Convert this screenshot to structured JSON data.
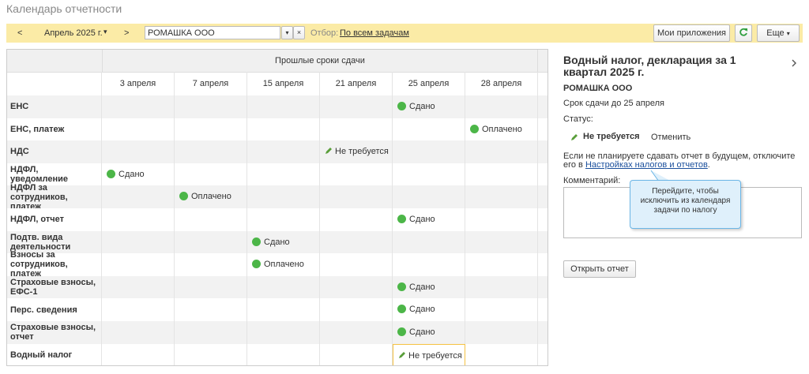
{
  "header": {
    "title": "Календарь отчетности"
  },
  "toolbar": {
    "prev": "<",
    "period": "Апрель 2025 г.",
    "next": ">",
    "company": "РОМАШКА ООО",
    "filter_label": "Отбор:",
    "filter_value": "По всем задачам",
    "apps": "Мои приложения",
    "more": "Еще"
  },
  "table": {
    "group_header": "Прошлые сроки сдачи",
    "dates": [
      "3 апреля",
      "7 апреля",
      "15 апреля",
      "21 апреля",
      "25 апреля",
      "28 апреля"
    ],
    "rows": [
      {
        "label": "ЕНС",
        "cells": [
          null,
          null,
          null,
          null,
          {
            "text": "Сдано",
            "icon": "dot"
          },
          null
        ]
      },
      {
        "label": "ЕНС, платеж",
        "cells": [
          null,
          null,
          null,
          null,
          null,
          {
            "text": "Оплачено",
            "icon": "dot"
          }
        ]
      },
      {
        "label": "НДС",
        "cells": [
          null,
          null,
          null,
          {
            "text": "Не требуется",
            "icon": "pencil"
          },
          null,
          null
        ]
      },
      {
        "label": "НДФЛ, уведомление",
        "cells": [
          {
            "text": "Сдано",
            "icon": "dot"
          },
          null,
          null,
          null,
          null,
          null
        ]
      },
      {
        "label": "НДФЛ за сотрудников, платеж",
        "cells": [
          null,
          {
            "text": "Оплачено",
            "icon": "dot"
          },
          null,
          null,
          null,
          null
        ]
      },
      {
        "label": "НДФЛ, отчет",
        "cells": [
          null,
          null,
          null,
          null,
          {
            "text": "Сдано",
            "icon": "dot"
          },
          null
        ]
      },
      {
        "label": "Подтв. вида деятельности",
        "cells": [
          null,
          null,
          {
            "text": "Сдано",
            "icon": "dot"
          },
          null,
          null,
          null
        ]
      },
      {
        "label": "Взносы за сотрудников, платеж",
        "cells": [
          null,
          null,
          {
            "text": "Оплачено",
            "icon": "dot"
          },
          null,
          null,
          null
        ]
      },
      {
        "label": "Страховые взносы, ЕФС-1",
        "cells": [
          null,
          null,
          null,
          null,
          {
            "text": "Сдано",
            "icon": "dot"
          },
          null
        ]
      },
      {
        "label": "Перс. сведения",
        "cells": [
          null,
          null,
          null,
          null,
          {
            "text": "Сдано",
            "icon": "dot"
          },
          null
        ]
      },
      {
        "label": "Страховые взносы, отчет",
        "cells": [
          null,
          null,
          null,
          null,
          {
            "text": "Сдано",
            "icon": "dot"
          },
          null
        ]
      },
      {
        "label": "Водный налог",
        "cells": [
          null,
          null,
          null,
          null,
          {
            "text": "Не требуется",
            "icon": "pencil"
          },
          null
        ]
      }
    ]
  },
  "panel": {
    "title": "Водный налог, декларация за 1 квартал 2025 г.",
    "company": "РОМАШКА ООО",
    "deadline": "Срок сдачи до 25 апреля",
    "status_label": "Статус:",
    "status": "Не требуется",
    "cancel": "Отменить",
    "notice": "Если не планируете сдавать отчет в будущем, отключите его в ",
    "notice_link": "Настройках налогов и отчетов",
    "notice_end": ".",
    "comment_label": "Комментарий:",
    "tooltip": "Перейдите, чтобы исключить из календаря задачи по налогу",
    "open_button": "Открыть отчет"
  }
}
